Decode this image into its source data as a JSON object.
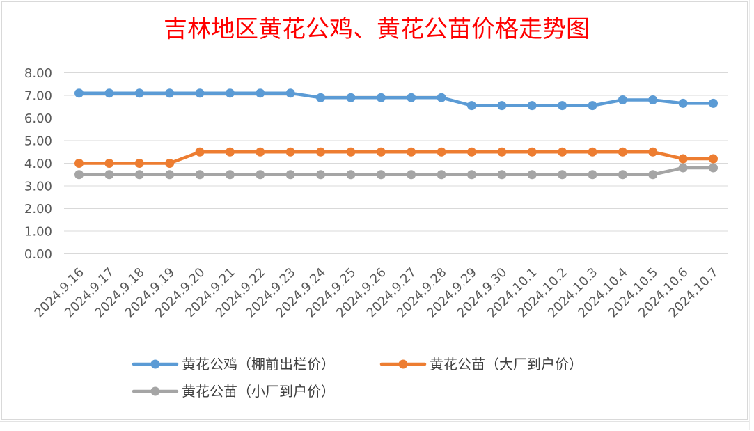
{
  "chart_data": {
    "type": "line",
    "title": "吉林地区黄花公鸡、黄花公苗价格走势图",
    "xlabel": "",
    "ylabel": "",
    "ylim": [
      0,
      8
    ],
    "yticks": [
      "0.00",
      "1.00",
      "2.00",
      "3.00",
      "4.00",
      "5.00",
      "6.00",
      "7.00",
      "8.00"
    ],
    "grid": true,
    "legend_position": "bottom",
    "categories": [
      "2024.9.16",
      "2024.9.17",
      "2024.9.18",
      "2024.9.19",
      "2024.9.20",
      "2024.9.21",
      "2024.9.22",
      "2024.9.23",
      "2024.9.24",
      "2024.9.25",
      "2024.9.26",
      "2024.9.27",
      "2024.9.28",
      "2024.9.29",
      "2024.9.30",
      "2024.10.1",
      "2024.10.2",
      "2024.10.3",
      "2024.10.4",
      "2024.10.5",
      "2024.10.6",
      "2024.10.7"
    ],
    "series": [
      {
        "name": "黄花公鸡（棚前出栏价）",
        "color": "#5b9bd5",
        "values": [
          7.1,
          7.1,
          7.1,
          7.1,
          7.1,
          7.1,
          7.1,
          7.1,
          6.9,
          6.9,
          6.9,
          6.9,
          6.9,
          6.55,
          6.55,
          6.55,
          6.55,
          6.55,
          6.8,
          6.8,
          6.65,
          6.65
        ]
      },
      {
        "name": "黄花公苗（大厂到户价）",
        "color": "#ed7d31",
        "values": [
          4.0,
          4.0,
          4.0,
          4.0,
          4.5,
          4.5,
          4.5,
          4.5,
          4.5,
          4.5,
          4.5,
          4.5,
          4.5,
          4.5,
          4.5,
          4.5,
          4.5,
          4.5,
          4.5,
          4.5,
          4.2,
          4.2
        ]
      },
      {
        "name": "黄花公苗（小厂到户价）",
        "color": "#a5a5a5",
        "values": [
          3.5,
          3.5,
          3.5,
          3.5,
          3.5,
          3.5,
          3.5,
          3.5,
          3.5,
          3.5,
          3.5,
          3.5,
          3.5,
          3.5,
          3.5,
          3.5,
          3.5,
          3.5,
          3.5,
          3.5,
          3.8,
          3.8
        ]
      }
    ]
  }
}
